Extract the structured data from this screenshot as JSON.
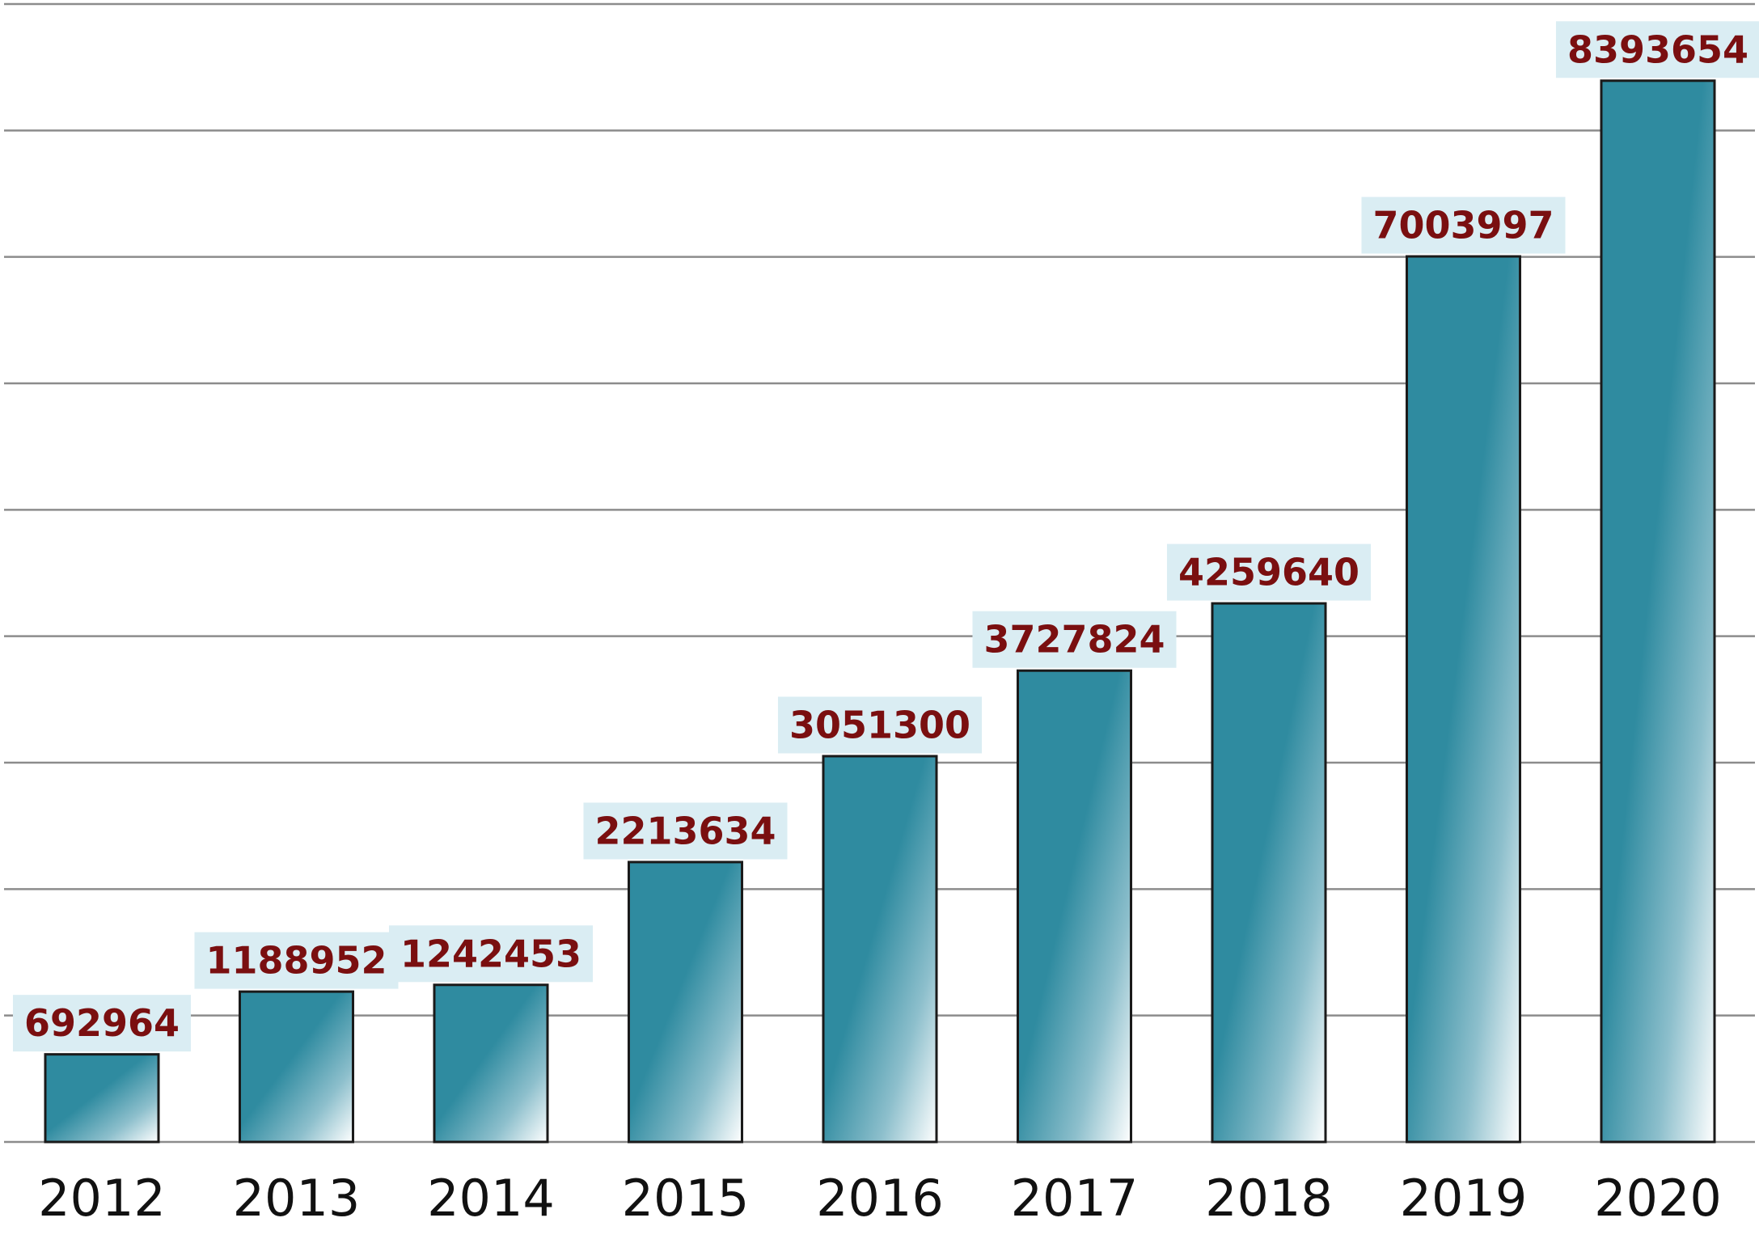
{
  "chart_data": {
    "type": "bar",
    "title": "",
    "xlabel": "",
    "ylabel": "",
    "categories": [
      "2012",
      "2013",
      "2014",
      "2015",
      "2016",
      "2017",
      "2018",
      "2019",
      "2020"
    ],
    "values": [
      692964,
      1188952,
      1242453,
      2213634,
      3051300,
      3727824,
      4259640,
      7003997,
      8393654
    ],
    "data_labels": [
      "692964",
      "1188952",
      "1242453",
      "2213634",
      "3051300",
      "3727824",
      "4259640",
      "7003997",
      "8393654"
    ],
    "ylim": [
      0,
      9000000
    ],
    "y_gridline_step": 1000000,
    "grid": true,
    "y_tick_labels_shown": false,
    "legend": "none",
    "colors": {
      "bar_top": "#2f8ba0",
      "bar_bottom": "#ffffff",
      "bar_outline": "#1a1a1a",
      "gridline": "#8c8c8c",
      "label_text": "#7a0f10",
      "label_background": "#daedf3",
      "tick_text": "#111111"
    }
  }
}
